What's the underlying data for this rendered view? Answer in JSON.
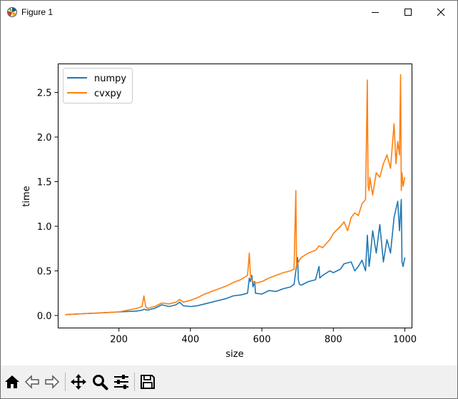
{
  "window": {
    "title": "Figure 1",
    "icons": {
      "app": "matplotlib-icon",
      "minimize": "minimize-icon",
      "maximize": "maximize-icon",
      "close": "close-icon"
    }
  },
  "toolbar": {
    "buttons": [
      {
        "name": "home",
        "icon": "home-icon"
      },
      {
        "name": "back",
        "icon": "arrow-left-icon"
      },
      {
        "name": "forward",
        "icon": "arrow-right-icon"
      },
      {
        "name": "pan",
        "icon": "move-icon"
      },
      {
        "name": "zoom",
        "icon": "zoom-icon"
      },
      {
        "name": "configure-subplots",
        "icon": "sliders-icon"
      },
      {
        "name": "save",
        "icon": "save-icon"
      }
    ]
  },
  "chart_data": {
    "type": "line",
    "title": "",
    "xlabel": "size",
    "ylabel": "time",
    "xlim": [
      30,
      1020
    ],
    "ylim": [
      -0.14,
      2.82
    ],
    "xticks": [
      200,
      400,
      600,
      800,
      1000
    ],
    "xtick_labels": [
      "200",
      "400",
      "600",
      "800",
      "1000"
    ],
    "yticks": [
      0.0,
      0.5,
      1.0,
      1.5,
      2.0,
      2.5
    ],
    "ytick_labels": [
      "0.0",
      "0.5",
      "1.0",
      "1.5",
      "2.0",
      "2.5"
    ],
    "grid": false,
    "legend": "top-left",
    "series": [
      {
        "name": "numpy",
        "color": "#1f77b4",
        "x": [
          50,
          100,
          150,
          200,
          250,
          265,
          270,
          280,
          300,
          320,
          340,
          360,
          370,
          380,
          400,
          420,
          440,
          460,
          480,
          500,
          520,
          540,
          560,
          565,
          568,
          572,
          575,
          580,
          582,
          600,
          620,
          640,
          660,
          680,
          690,
          700,
          702,
          705,
          710,
          730,
          750,
          760,
          762,
          770,
          790,
          800,
          820,
          830,
          850,
          860,
          870,
          880,
          890,
          895,
          900,
          903,
          910,
          920,
          930,
          940,
          950,
          960,
          970,
          980,
          985,
          990,
          992,
          995,
          1000
        ],
        "y": [
          0.01,
          0.02,
          0.03,
          0.04,
          0.05,
          0.06,
          0.07,
          0.06,
          0.08,
          0.12,
          0.1,
          0.12,
          0.15,
          0.11,
          0.1,
          0.11,
          0.13,
          0.15,
          0.17,
          0.19,
          0.22,
          0.23,
          0.25,
          0.42,
          0.38,
          0.45,
          0.32,
          0.38,
          0.25,
          0.24,
          0.28,
          0.27,
          0.3,
          0.32,
          0.35,
          0.65,
          0.4,
          0.35,
          0.34,
          0.38,
          0.4,
          0.55,
          0.42,
          0.45,
          0.5,
          0.48,
          0.52,
          0.58,
          0.6,
          0.5,
          0.55,
          0.62,
          0.5,
          0.9,
          0.55,
          0.65,
          0.95,
          0.7,
          1.02,
          0.6,
          0.85,
          0.7,
          1.1,
          1.28,
          0.95,
          1.3,
          0.6,
          0.55,
          0.65
        ]
      },
      {
        "name": "cvxpy",
        "color": "#ff7f0e",
        "x": [
          50,
          100,
          150,
          200,
          250,
          265,
          270,
          275,
          280,
          300,
          320,
          340,
          360,
          370,
          380,
          400,
          420,
          440,
          460,
          480,
          500,
          520,
          540,
          560,
          565,
          568,
          572,
          575,
          580,
          600,
          620,
          640,
          660,
          680,
          690,
          695,
          697,
          700,
          705,
          710,
          730,
          750,
          760,
          770,
          790,
          800,
          820,
          830,
          840,
          850,
          860,
          870,
          880,
          890,
          895,
          897,
          900,
          902,
          910,
          920,
          930,
          940,
          950,
          960,
          970,
          975,
          980,
          985,
          988,
          990,
          992,
          995,
          1000
        ],
        "y": [
          0.01,
          0.02,
          0.03,
          0.04,
          0.08,
          0.1,
          0.22,
          0.1,
          0.08,
          0.1,
          0.14,
          0.13,
          0.15,
          0.18,
          0.15,
          0.17,
          0.2,
          0.24,
          0.27,
          0.3,
          0.33,
          0.37,
          0.4,
          0.45,
          0.7,
          0.45,
          0.4,
          0.38,
          0.36,
          0.38,
          0.42,
          0.45,
          0.48,
          0.5,
          0.52,
          1.4,
          0.55,
          0.58,
          0.62,
          0.65,
          0.7,
          0.73,
          0.78,
          0.76,
          0.85,
          0.92,
          1.0,
          1.05,
          0.95,
          1.1,
          1.15,
          1.12,
          1.25,
          1.3,
          2.64,
          1.45,
          1.4,
          1.55,
          1.35,
          1.6,
          1.55,
          1.7,
          1.8,
          1.65,
          2.15,
          1.7,
          1.95,
          1.8,
          2.7,
          1.4,
          1.6,
          1.45,
          1.55
        ]
      }
    ]
  }
}
